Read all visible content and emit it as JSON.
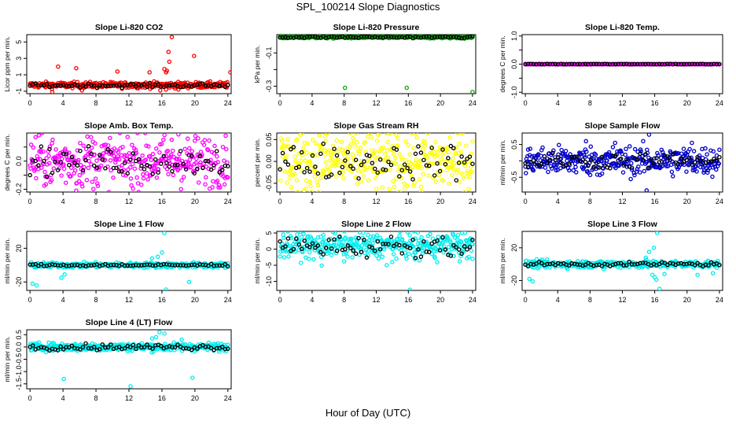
{
  "title": "SPL_100214  Slope Diagnostics",
  "xlabel": "Hour of Day (UTC)",
  "chart_data": [
    {
      "type": "scatter",
      "id": "co2",
      "title": "Slope Li-820 CO2",
      "ylabel": "Licor ppm per min.",
      "color": "#ff0000",
      "xlim": [
        -0.4,
        24.4
      ],
      "xticks": [
        0,
        4,
        8,
        12,
        16,
        20,
        24
      ],
      "ylim": [
        -1.3,
        5.9
      ],
      "yticks": [
        -1,
        1,
        3,
        5
      ],
      "spread": 0.18,
      "base": -0.25,
      "black_spread": 0.12,
      "black_base": -0.3,
      "outliers": [
        [
          3.4,
          2.0
        ],
        [
          5.6,
          1.8
        ],
        [
          10.6,
          1.4
        ],
        [
          14.5,
          1.3
        ],
        [
          16.3,
          1.7
        ],
        [
          16.5,
          1.3
        ],
        [
          16.6,
          1.5
        ],
        [
          16.8,
          3.8
        ],
        [
          16.9,
          2.6
        ],
        [
          17.2,
          5.6
        ],
        [
          19.9,
          3.3
        ],
        [
          24.3,
          1.3
        ],
        [
          2.7,
          -1.1
        ],
        [
          6.3,
          -0.9
        ],
        [
          15.8,
          -0.9
        ],
        [
          16.5,
          -0.8
        ],
        [
          18.0,
          -0.8
        ]
      ]
    },
    {
      "type": "scatter",
      "id": "pressure",
      "title": "Slope Li-820 Pressure",
      "ylabel": "kPa per min.",
      "color": "#00aa00",
      "xlim": [
        -0.4,
        24.4
      ],
      "xticks": [
        0,
        4,
        8,
        12,
        16,
        20,
        24
      ],
      "ylim": [
        -0.345,
        0.01
      ],
      "yticks": [
        -0.1,
        -0.2,
        -0.3
      ],
      "ytick_labels": [
        "-0.1",
        "",
        "-0.3"
      ],
      "spread": 0.004,
      "base": -0.005,
      "black_spread": 0.003,
      "black_base": -0.005,
      "outliers": [
        [
          8.1,
          -0.31
        ],
        [
          15.8,
          -0.31
        ],
        [
          24.0,
          -0.335
        ]
      ]
    },
    {
      "type": "scatter",
      "id": "temp",
      "title": "Slope Li-820 Temp.",
      "ylabel": "degrees C per min.",
      "color": "#ff00ff",
      "xlim": [
        -0.4,
        24.4
      ],
      "xticks": [
        0,
        4,
        8,
        12,
        16,
        20,
        24
      ],
      "ylim": [
        -1.05,
        1.05
      ],
      "yticks": [
        -1,
        -0.5,
        0,
        0.5,
        1
      ],
      "ytick_labels": [
        "-1.0",
        "",
        "0.0",
        "",
        "1.0"
      ],
      "spread": 0.005,
      "base": 0,
      "black_spread": 0.005,
      "black_base": 0,
      "outliers": []
    },
    {
      "type": "scatter",
      "id": "box",
      "title": "Slope Amb. Box Temp.",
      "ylabel": "degrees C per min.",
      "color": "#ff00ff",
      "xlim": [
        -0.4,
        24.4
      ],
      "xticks": [
        0,
        4,
        8,
        12,
        16,
        20,
        24
      ],
      "ylim": [
        -0.22,
        0.2
      ],
      "yticks": [
        -0.2,
        -0.1,
        0,
        0.1
      ],
      "ytick_labels": [
        "-0.2",
        "",
        "0.0",
        ""
      ],
      "spread": 0.09,
      "base": 0,
      "black_spread": 0.05,
      "black_base": 0,
      "outliers": [
        [
          5.6,
          -0.21
        ],
        [
          7.4,
          0.17
        ],
        [
          18.0,
          0.19
        ]
      ]
    },
    {
      "type": "scatter",
      "id": "rh",
      "title": "Slope Gas Stream RH",
      "ylabel": "percent per min.",
      "color": "#ffff00",
      "xlim": [
        -0.4,
        24.4
      ],
      "xticks": [
        0,
        4,
        8,
        12,
        16,
        20,
        24
      ],
      "ylim": [
        -0.07,
        0.065
      ],
      "yticks": [
        -0.05,
        0,
        0.05
      ],
      "ytick_labels": [
        "-0.05",
        "0.00",
        "0.05"
      ],
      "spread": 0.035,
      "base": 0,
      "black_spread": 0.02,
      "black_base": 0,
      "outliers": [
        [
          17.6,
          -0.068
        ],
        [
          5.6,
          0.058
        ],
        [
          14.5,
          0.06
        ]
      ]
    },
    {
      "type": "scatter",
      "id": "sample",
      "title": "Slope Sample Flow",
      "ylabel": "ml/min per min.",
      "color": "#0000cc",
      "xlim": [
        -0.4,
        24.4
      ],
      "xticks": [
        0,
        4,
        8,
        12,
        16,
        20,
        24
      ],
      "ylim": [
        -0.95,
        0.85
      ],
      "yticks": [
        -0.5,
        0,
        0.5
      ],
      "ytick_labels": [
        "-0.5",
        "",
        "0.5"
      ],
      "spread": 0.22,
      "base": 0,
      "black_spread": 0.12,
      "black_base": 0,
      "outliers": [
        [
          15.3,
          0.8
        ],
        [
          15.0,
          -0.9
        ],
        [
          11.1,
          0.55
        ],
        [
          7.5,
          0.6
        ],
        [
          20.6,
          0.55
        ]
      ]
    },
    {
      "type": "scatter",
      "id": "line1",
      "title": "Slope Line 1 Flow",
      "ylabel": "ml/min per min.",
      "color": "#00eeee",
      "xlim": [
        -0.4,
        24.4
      ],
      "xticks": [
        0,
        4,
        8,
        12,
        16,
        20,
        24
      ],
      "ylim": [
        -30,
        40
      ],
      "yticks": [
        -20,
        20
      ],
      "ytick_labels": [
        "-20",
        "20"
      ],
      "spread": 1.5,
      "base": 0,
      "black_spread": 0.8,
      "black_base": 0,
      "outliers": [
        [
          0.3,
          -22
        ],
        [
          0.8,
          -24
        ],
        [
          16.3,
          38
        ],
        [
          16.5,
          -29
        ],
        [
          16.0,
          15
        ],
        [
          15.5,
          10
        ],
        [
          3.8,
          -15
        ],
        [
          4.2,
          -11
        ],
        [
          19.3,
          -20
        ],
        [
          14.8,
          8
        ]
      ]
    },
    {
      "type": "scatter",
      "id": "line2",
      "title": "Slope Line 2 Flow",
      "ylabel": "ml/min per min.",
      "color": "#00eeee",
      "xlim": [
        -0.4,
        24.4
      ],
      "xticks": [
        0,
        4,
        8,
        12,
        16,
        20,
        24
      ],
      "ylim": [
        -12.8,
        5.5
      ],
      "yticks": [
        -10,
        -5,
        0,
        5
      ],
      "ytick_labels": [
        "-10",
        "-5",
        "0",
        "5"
      ],
      "spread": 1.8,
      "base": 1.2,
      "black_spread": 1.6,
      "black_base": 1.0,
      "outliers": [
        [
          16.2,
          -12.6
        ],
        [
          4.2,
          -3.2
        ],
        [
          5.2,
          -5.1
        ],
        [
          8.0,
          -3.8
        ],
        [
          16.8,
          -3.1
        ],
        [
          17.4,
          -3.5
        ],
        [
          19.6,
          -4.1
        ],
        [
          24.0,
          -3.0
        ],
        [
          22.4,
          -3.8
        ],
        [
          23.3,
          -2.8
        ],
        [
          13.3,
          -5.0
        ],
        [
          14.0,
          -4.0
        ],
        [
          11.0,
          -2.0
        ],
        [
          20.8,
          4.0
        ],
        [
          21.6,
          4.4
        ],
        [
          22.7,
          5.0
        ]
      ]
    },
    {
      "type": "scatter",
      "id": "line3",
      "title": "Slope Line 3 Flow",
      "ylabel": "ml/min per min.",
      "color": "#00eeee",
      "xlim": [
        -0.4,
        24.4
      ],
      "xticks": [
        0,
        4,
        8,
        12,
        16,
        20,
        24
      ],
      "ylim": [
        -32,
        40
      ],
      "yticks": [
        -20,
        20
      ],
      "ytick_labels": [
        "-20",
        "20"
      ],
      "spread": 2.2,
      "base": 0,
      "black_spread": 1.2,
      "black_base": 0,
      "outliers": [
        [
          0.5,
          -18
        ],
        [
          0.9,
          -21
        ],
        [
          16.3,
          38
        ],
        [
          16.6,
          -30
        ],
        [
          15.9,
          20
        ],
        [
          15.3,
          15
        ],
        [
          15.7,
          -13
        ],
        [
          16.2,
          -19
        ],
        [
          14.9,
          8
        ],
        [
          17.2,
          -12
        ],
        [
          21.3,
          -13
        ],
        [
          23.2,
          -11
        ],
        [
          9.7,
          -6
        ],
        [
          16.0,
          -16
        ]
      ]
    },
    {
      "type": "scatter",
      "id": "line4",
      "title": "Slope Line 4 (LT) Flow",
      "ylabel": "ml/min per min.",
      "color": "#00eeee",
      "xlim": [
        -0.4,
        24.4
      ],
      "xticks": [
        0,
        4,
        8,
        12,
        16,
        20,
        24
      ],
      "ylim": [
        -1.7,
        0.7
      ],
      "yticks": [
        -1.5,
        -1,
        -0.5,
        0,
        0.5
      ],
      "ytick_labels": [
        "-1.5",
        "-1.0",
        "-0.5",
        "0.0",
        "0.5"
      ],
      "spread": 0.08,
      "base": 0,
      "black_spread": 0.06,
      "black_base": 0,
      "outliers": [
        [
          4.1,
          -1.3
        ],
        [
          12.2,
          -1.6
        ],
        [
          19.7,
          -1.25
        ],
        [
          15.7,
          0.6
        ],
        [
          16.3,
          0.55
        ],
        [
          15.3,
          0.4
        ],
        [
          14.8,
          0.35
        ],
        [
          18.4,
          0.3
        ]
      ]
    }
  ]
}
